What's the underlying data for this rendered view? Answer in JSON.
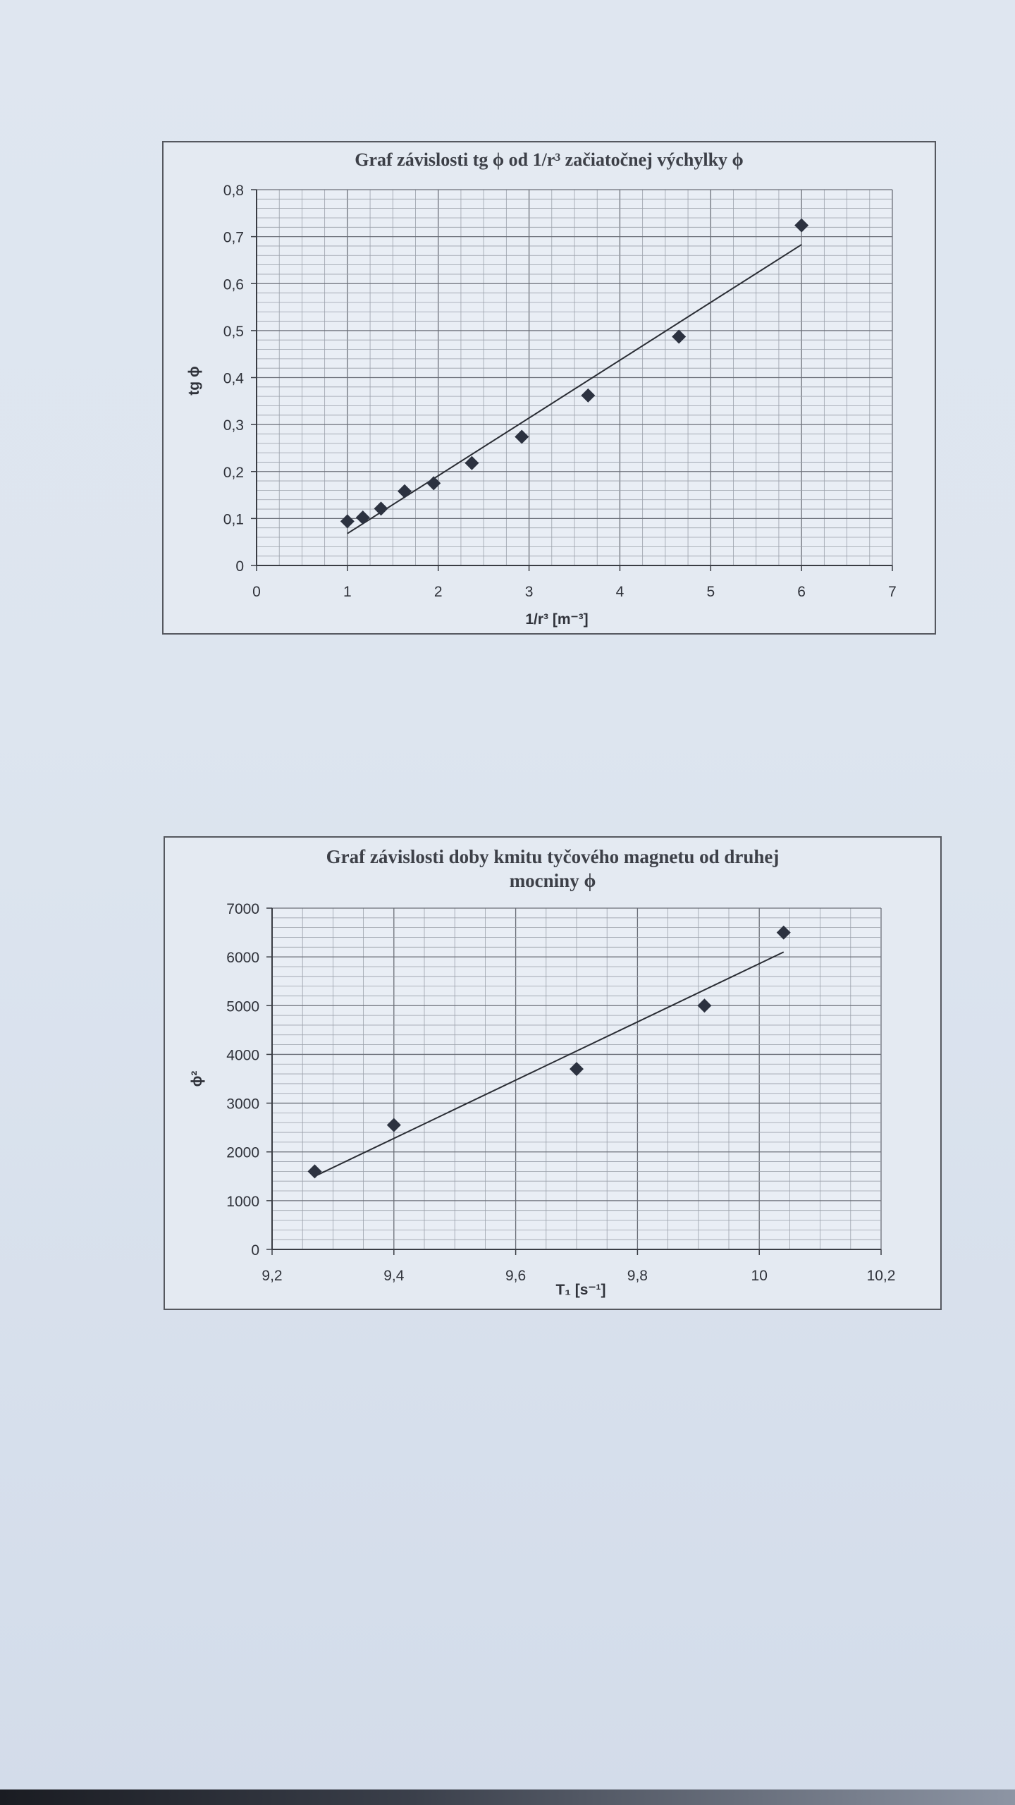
{
  "chart_data": [
    {
      "type": "scatter",
      "title": "Graf závislosti tg ϕ od 1/r³ začiatočnej výchylky ϕ",
      "xlabel": "1/r³ [m⁻³]",
      "ylabel": "tg ϕ",
      "xlim": [
        0,
        7
      ],
      "ylim": [
        0,
        0.8
      ],
      "x_ticks": [
        "0",
        "1",
        "2",
        "3",
        "4",
        "5",
        "6",
        "7"
      ],
      "y_ticks": [
        "0",
        "0,1",
        "0,2",
        "0,3",
        "0,4",
        "0,5",
        "0,6",
        "0,7",
        "0,8"
      ],
      "grid": true,
      "trendline": true,
      "series": [
        {
          "x": [
            1.0,
            1.17,
            1.37,
            1.63,
            1.95,
            2.37,
            2.92,
            3.65,
            4.65,
            6.0
          ],
          "y": [
            0.094,
            0.102,
            0.121,
            0.158,
            0.175,
            0.218,
            0.274,
            0.362,
            0.487,
            0.724
          ]
        }
      ],
      "trend": {
        "x": [
          1.0,
          6.0
        ],
        "y": [
          0.068,
          0.683
        ]
      },
      "marker_color": "#2c3240"
    },
    {
      "type": "scatter",
      "title": "Graf závislosti doby kmitu tyčového magnetu od druhej mocniny ϕ",
      "xlabel": "T₁ [s⁻¹]",
      "ylabel": "ϕ²",
      "xlim": [
        9.2,
        10.2
      ],
      "ylim": [
        0,
        7000
      ],
      "x_ticks": [
        "9,2",
        "9,4",
        "9,6",
        "9,8",
        "10",
        "10,2"
      ],
      "y_ticks": [
        "0",
        "1000",
        "2000",
        "3000",
        "4000",
        "5000",
        "6000",
        "7000"
      ],
      "grid": true,
      "trendline": true,
      "series": [
        {
          "x": [
            9.27,
            9.4,
            9.7,
            9.91,
            10.04
          ],
          "y": [
            1600,
            2550,
            3700,
            5000,
            6500
          ]
        }
      ],
      "trend": {
        "x": [
          9.27,
          10.04
        ],
        "y": [
          1500,
          6100
        ]
      },
      "marker_color": "#2c3240"
    }
  ]
}
